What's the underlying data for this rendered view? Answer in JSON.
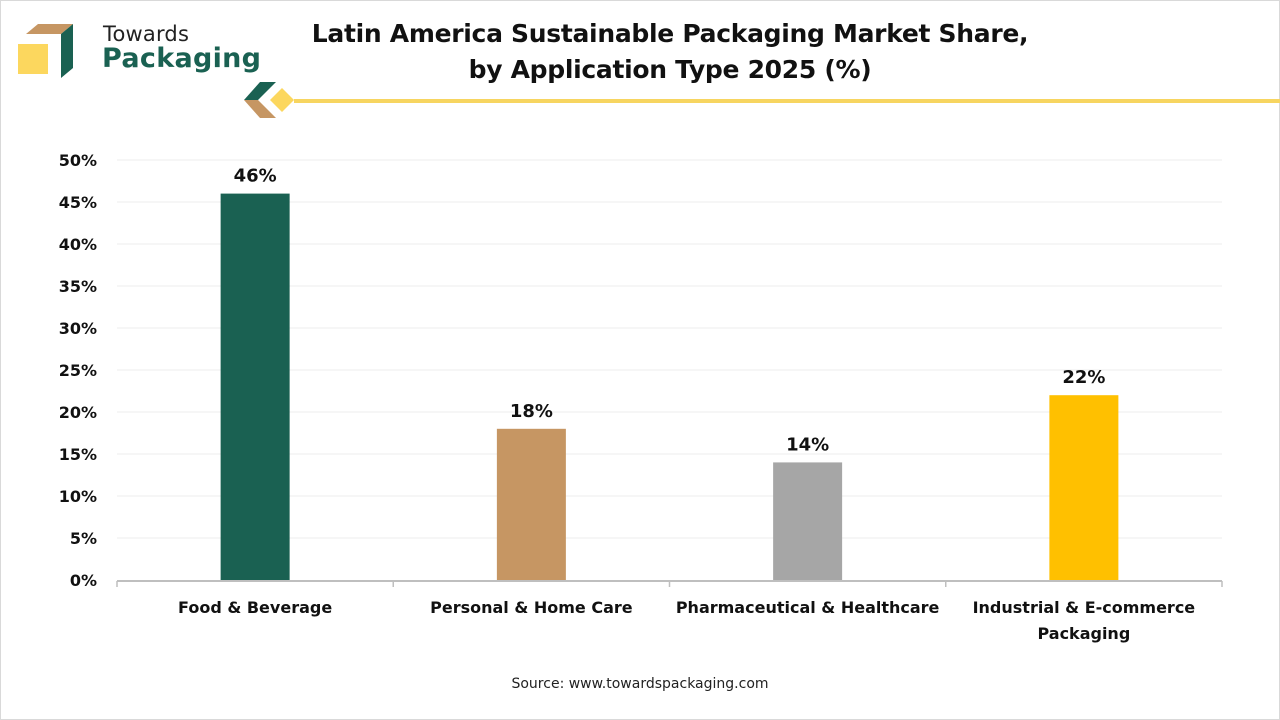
{
  "brand": {
    "line1": "Towards",
    "line2": "Packaging",
    "colors": {
      "green": "#1a6152",
      "tan": "#c69663",
      "yellow": "#fcd75e",
      "accent_line": "#f7d560"
    }
  },
  "source": "Source: www.towardspackaging.com",
  "chart_data": {
    "type": "bar",
    "title": "Latin America Sustainable Packaging Market Share, by Application Type 2025 (%)",
    "title_lines": [
      "Latin America Sustainable Packaging Market Share,",
      "by Application Type 2025 (%)"
    ],
    "xlabel": "",
    "ylabel": "",
    "categories": [
      "Food & Beverage",
      "Personal & Home Care",
      "Pharmaceutical & Healthcare",
      "Industrial & E-commerce Packaging"
    ],
    "category_lines": [
      [
        "Food & Beverage"
      ],
      [
        "Personal & Home Care"
      ],
      [
        "Pharmaceutical & Healthcare"
      ],
      [
        "Industrial & E-commerce",
        "Packaging"
      ]
    ],
    "values": [
      46,
      18,
      14,
      22
    ],
    "data_labels": [
      "46%",
      "18%",
      "14%",
      "22%"
    ],
    "bar_colors": [
      "#1a6152",
      "#c69663",
      "#a6a6a6",
      "#ffc000"
    ],
    "ylim": [
      0,
      50
    ],
    "yticks": [
      0,
      5,
      10,
      15,
      20,
      25,
      30,
      35,
      40,
      45,
      50
    ],
    "ytick_labels": [
      "0%",
      "5%",
      "10%",
      "15%",
      "20%",
      "25%",
      "30%",
      "35%",
      "40%",
      "45%",
      "50%"
    ],
    "grid": true,
    "legend": "none"
  }
}
